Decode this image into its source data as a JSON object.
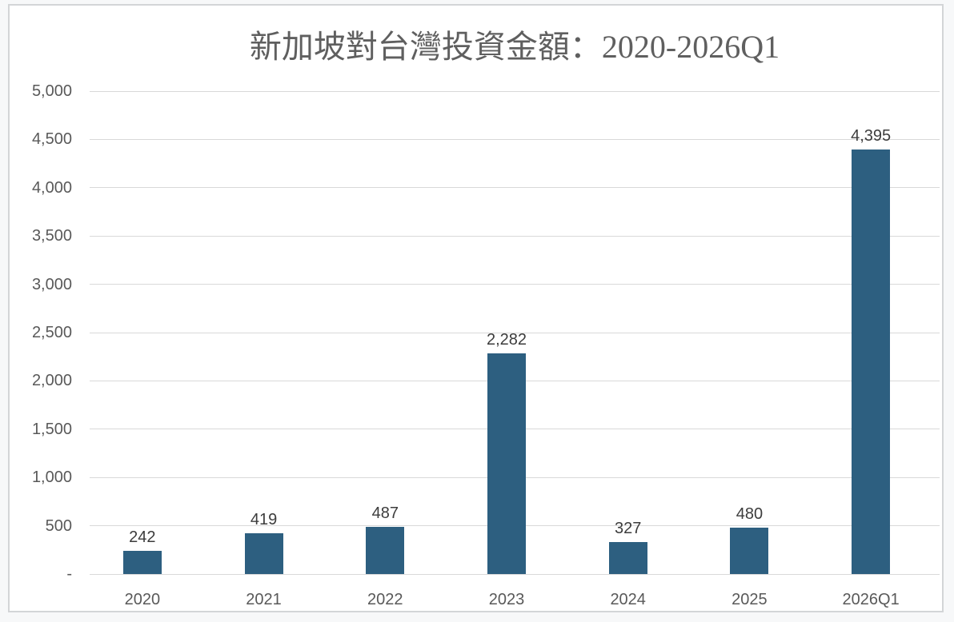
{
  "page": {
    "background_color": "#f7f8f9",
    "frame_background_color": "#ffffff",
    "frame_border_color": "#d3d5d7"
  },
  "chart_data": {
    "type": "bar",
    "title": "新加坡對台灣投資金額：2020-2026Q1",
    "categories": [
      "2020",
      "2021",
      "2022",
      "2023",
      "2024",
      "2025",
      "2026Q1"
    ],
    "values": [
      242,
      419,
      487,
      2282,
      327,
      480,
      4395
    ],
    "value_labels": [
      "242",
      "419",
      "487",
      "2,282",
      "327",
      "480",
      "4,395"
    ],
    "xlabel": "",
    "ylabel": "",
    "ylim": [
      0,
      5000
    ],
    "y_tick_step": 500,
    "y_tick_values": [
      0,
      500,
      1000,
      1500,
      2000,
      2500,
      3000,
      3500,
      4000,
      4500,
      5000
    ],
    "y_tick_labels": [
      "-",
      "500",
      "1,000",
      "1,500",
      "2,000",
      "2,500",
      "3,000",
      "3,500",
      "4,000",
      "4,500",
      "5,000"
    ],
    "grid": "horizontal",
    "legend": "none",
    "bar_color": "#2d5f80",
    "gridline_color": "#d9d9d9",
    "title_color": "#5f5f5f",
    "axis_label_color": "#595959",
    "value_label_color": "#3c3c3c"
  }
}
